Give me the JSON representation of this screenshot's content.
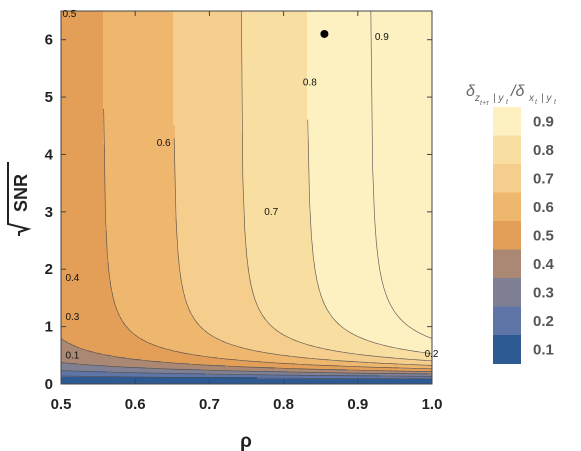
{
  "chart_data": {
    "type": "contour",
    "title": "",
    "xlabel": "ρ",
    "ylabel": "√SNR",
    "xlim": [
      0.5,
      1.0
    ],
    "ylim": [
      0,
      6.5
    ],
    "x_ticks": [
      "0.5",
      "0.6",
      "0.7",
      "0.8",
      "0.9",
      "1.0"
    ],
    "y_ticks": [
      "0",
      "1",
      "2",
      "3",
      "4",
      "5",
      "6"
    ],
    "contour_levels": [
      0.1,
      0.2,
      0.3,
      0.4,
      0.5,
      0.6,
      0.7,
      0.8,
      0.9
    ],
    "contour_labels": [
      {
        "text": "0.5",
        "x": 0.502,
        "y": 6.45
      },
      {
        "text": "0.6",
        "x": 0.629,
        "y": 4.2
      },
      {
        "text": "0.7",
        "x": 0.774,
        "y": 3.0
      },
      {
        "text": "0.8",
        "x": 0.826,
        "y": 5.25
      },
      {
        "text": "0.9",
        "x": 0.923,
        "y": 6.05
      },
      {
        "text": "0.4",
        "x": 0.506,
        "y": 1.85
      },
      {
        "text": "0.3",
        "x": 0.506,
        "y": 1.17
      },
      {
        "text": "0.1",
        "x": 0.506,
        "y": 0.5
      },
      {
        "text": "0.2",
        "x": 0.99,
        "y": 0.52
      }
    ],
    "highlight_point": {
      "x": 0.855,
      "y": 6.1
    },
    "legend": {
      "title": "δ_{z_{t+τ}|y_t}/δ_{x_t|y_t}",
      "position": "right",
      "labels": [
        "0.9",
        "0.8",
        "0.7",
        "0.6",
        "0.5",
        "0.4",
        "0.3",
        "0.2",
        "0.1"
      ],
      "colors": [
        "#FDF1C1",
        "#F9DEA2",
        "#F5CD8C",
        "#EFB66E",
        "#E39E57",
        "#AA8873",
        "#808095",
        "#5F75A7",
        "#2E5A94"
      ]
    }
  }
}
